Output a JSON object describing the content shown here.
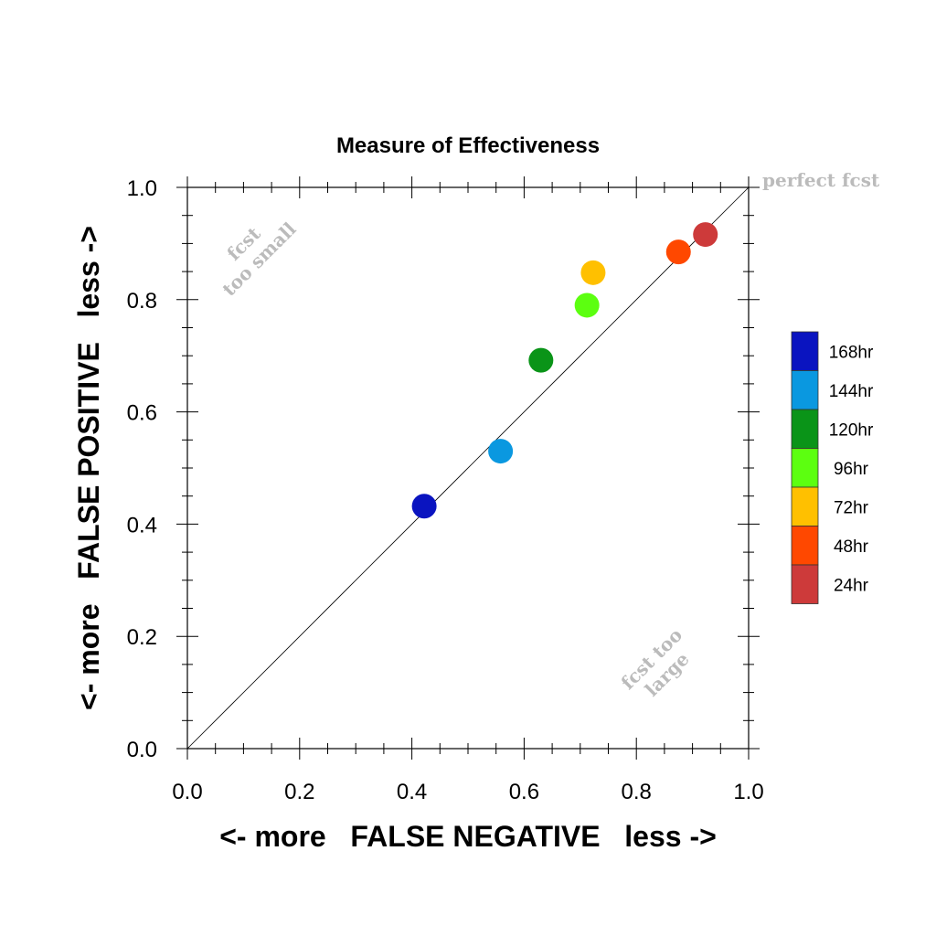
{
  "chart_data": {
    "type": "scatter",
    "title": "Measure of Effectiveness",
    "xlabel": "<- more   FALSE NEGATIVE   less ->",
    "ylabel": "<- more   FALSE POSITIVE   less ->",
    "xlim": [
      0.0,
      1.0
    ],
    "ylim": [
      0.0,
      1.0
    ],
    "xticks": [
      "0.0",
      "0.2",
      "0.4",
      "0.6",
      "0.8",
      "1.0"
    ],
    "yticks": [
      "0.0",
      "0.2",
      "0.4",
      "0.6",
      "0.8",
      "1.0"
    ],
    "grid": false,
    "legend_position": "right",
    "reference_line": {
      "label": "perfect fcst",
      "from": [
        0,
        0
      ],
      "to": [
        1,
        1
      ]
    },
    "annotations": {
      "upper_left": [
        "fcst",
        "too small"
      ],
      "lower_right": [
        "fcst too",
        "large"
      ]
    },
    "annotation_color": "#bbbbbb",
    "series": [
      {
        "name": "168hr",
        "x": 0.422,
        "y": 0.432,
        "color": "#0a14c0"
      },
      {
        "name": "144hr",
        "x": 0.558,
        "y": 0.53,
        "color": "#0a98e0"
      },
      {
        "name": "120hr",
        "x": 0.63,
        "y": 0.692,
        "color": "#0a9418"
      },
      {
        "name": "96hr",
        "x": 0.712,
        "y": 0.79,
        "color": "#5cff10"
      },
      {
        "name": "72hr",
        "x": 0.723,
        "y": 0.848,
        "color": "#ffc000"
      },
      {
        "name": "48hr",
        "x": 0.875,
        "y": 0.885,
        "color": "#ff4800"
      },
      {
        "name": "24hr",
        "x": 0.923,
        "y": 0.916,
        "color": "#cd3a3a"
      }
    ],
    "legend_order": [
      "168hr",
      "144hr",
      "120hr",
      "96hr",
      "72hr",
      "48hr",
      "24hr"
    ]
  }
}
